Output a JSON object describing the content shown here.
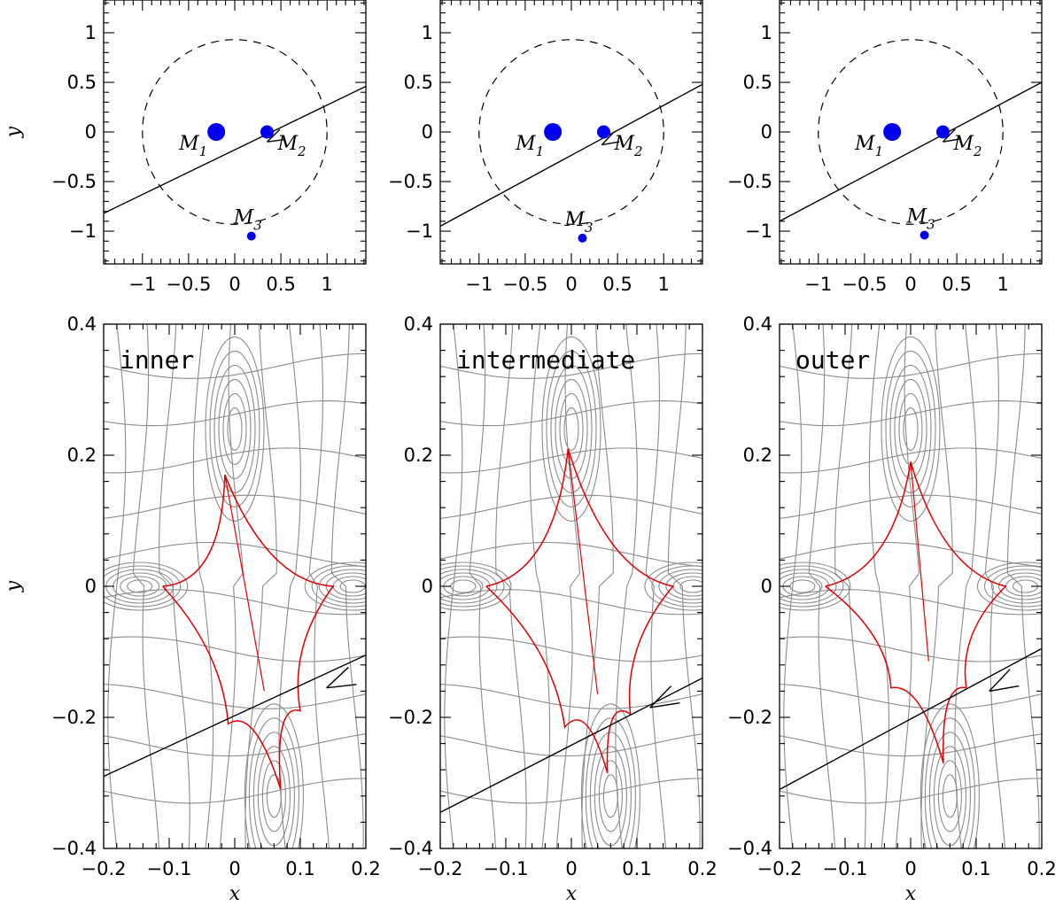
{
  "chart_data": [
    {
      "type": "scatter",
      "panel": "top-left",
      "xlabel": "",
      "ylabel": "y",
      "xlim": [
        -1.42,
        1.42
      ],
      "ylim": [
        -1.33,
        1.33
      ],
      "xticks": [
        "−1",
        "−0.5",
        "0",
        "0.5",
        "1"
      ],
      "yticks": [
        "1",
        "0.5",
        "0",
        "−0.5",
        "−1"
      ],
      "circle_radius": 1.0,
      "masses": [
        {
          "label": "M",
          "sub": "1",
          "x": -0.2,
          "y": 0.0,
          "size": "large"
        },
        {
          "label": "M",
          "sub": "2",
          "x": 0.35,
          "y": 0.0,
          "size": "medium"
        },
        {
          "label": "M",
          "sub": "3",
          "x": 0.18,
          "y": -1.05,
          "size": "small"
        }
      ],
      "trajectory": {
        "x": [
          -1.42,
          1.42
        ],
        "y": [
          -0.82,
          0.46
        ]
      },
      "arrow_at": {
        "x": 0.35,
        "y": -0.1
      }
    },
    {
      "type": "scatter",
      "panel": "top-middle",
      "xlabel": "",
      "ylabel": "",
      "xlim": [
        -1.42,
        1.42
      ],
      "ylim": [
        -1.33,
        1.33
      ],
      "xticks": [
        "−1",
        "−0.5",
        "0",
        "0.5",
        "1"
      ],
      "yticks": [
        "1",
        "0.5",
        "0",
        "−0.5",
        "−1"
      ],
      "circle_radius": 1.0,
      "masses": [
        {
          "label": "M",
          "sub": "1",
          "x": -0.2,
          "y": 0.0,
          "size": "large"
        },
        {
          "label": "M",
          "sub": "2",
          "x": 0.35,
          "y": 0.0,
          "size": "medium"
        },
        {
          "label": "M",
          "sub": "3",
          "x": 0.12,
          "y": -1.07,
          "size": "small"
        }
      ],
      "trajectory": {
        "x": [
          -1.42,
          1.42
        ],
        "y": [
          -0.95,
          0.48
        ]
      },
      "arrow_at": {
        "x": 0.33,
        "y": -0.13
      }
    },
    {
      "type": "scatter",
      "panel": "top-right",
      "xlabel": "",
      "ylabel": "",
      "xlim": [
        -1.42,
        1.42
      ],
      "ylim": [
        -1.33,
        1.33
      ],
      "xticks": [
        "−1",
        "−0.5",
        "0",
        "0.5",
        "1"
      ],
      "yticks": [
        "1",
        "0.5",
        "0",
        "−0.5",
        "−1"
      ],
      "circle_radius": 1.0,
      "masses": [
        {
          "label": "M",
          "sub": "1",
          "x": -0.2,
          "y": 0.0,
          "size": "large"
        },
        {
          "label": "M",
          "sub": "2",
          "x": 0.35,
          "y": 0.0,
          "size": "medium"
        },
        {
          "label": "M",
          "sub": "3",
          "x": 0.15,
          "y": -1.04,
          "size": "small"
        }
      ],
      "trajectory": {
        "x": [
          -1.42,
          1.42
        ],
        "y": [
          -0.9,
          0.5
        ]
      },
      "arrow_at": {
        "x": 0.35,
        "y": -0.1
      }
    },
    {
      "type": "line",
      "panel": "bottom-left",
      "label": "inner",
      "xlabel": "x",
      "ylabel": "y",
      "xlim": [
        -0.2,
        0.2
      ],
      "ylim": [
        -0.4,
        0.4
      ],
      "xticks": [
        "−0.2",
        "−0.1",
        "0",
        "0.1",
        "0.2"
      ],
      "yticks": [
        "0.4",
        "0.2",
        "0",
        "−0.2",
        "−0.4"
      ],
      "caustic": {
        "cusps": [
          [
            -0.11,
            0.0
          ],
          [
            -0.015,
            0.17
          ],
          [
            0.15,
            0.0
          ],
          [
            0.1,
            -0.19
          ],
          [
            0.07,
            -0.31
          ],
          [
            -0.01,
            -0.21
          ]
        ]
      },
      "trajectory": {
        "x": [
          -0.2,
          0.2
        ],
        "y": [
          -0.29,
          -0.105
        ]
      },
      "arrow_at": {
        "x": 0.14,
        "y": -0.155
      }
    },
    {
      "type": "line",
      "panel": "bottom-middle",
      "label": "intermediate",
      "xlabel": "x",
      "ylabel": "",
      "xlim": [
        -0.2,
        0.2
      ],
      "ylim": [
        -0.4,
        0.4
      ],
      "xticks": [
        "−0.2",
        "−0.1",
        "0",
        "0.1",
        "0.2"
      ],
      "yticks": [
        "0.4",
        "0.2",
        "0",
        "−0.2",
        "−0.4"
      ],
      "caustic": {
        "cusps": [
          [
            -0.13,
            0.0
          ],
          [
            -0.005,
            0.21
          ],
          [
            0.155,
            0.0
          ],
          [
            0.09,
            -0.195
          ],
          [
            0.055,
            -0.285
          ],
          [
            -0.01,
            -0.215
          ]
        ]
      },
      "trajectory": {
        "x": [
          -0.2,
          0.2
        ],
        "y": [
          -0.345,
          -0.14
        ]
      },
      "arrow_at": {
        "x": 0.12,
        "y": -0.185
      }
    },
    {
      "type": "line",
      "panel": "bottom-right",
      "label": "outer",
      "xlabel": "x",
      "ylabel": "",
      "xlim": [
        -0.2,
        0.2
      ],
      "ylim": [
        -0.4,
        0.4
      ],
      "xticks": [
        "−0.2",
        "−0.1",
        "0",
        "0.1",
        "0.2"
      ],
      "yticks": [
        "0.4",
        "0.2",
        "0",
        "−0.2",
        "−0.4"
      ],
      "caustic": {
        "cusps": [
          [
            -0.13,
            0.0
          ],
          [
            0.0,
            0.19
          ],
          [
            0.145,
            0.0
          ],
          [
            0.085,
            -0.155
          ],
          [
            0.05,
            -0.27
          ],
          [
            -0.03,
            -0.155
          ]
        ]
      },
      "trajectory": {
        "x": [
          -0.2,
          0.2
        ],
        "y": [
          -0.31,
          -0.095
        ]
      },
      "arrow_at": {
        "x": 0.12,
        "y": -0.16
      }
    }
  ]
}
